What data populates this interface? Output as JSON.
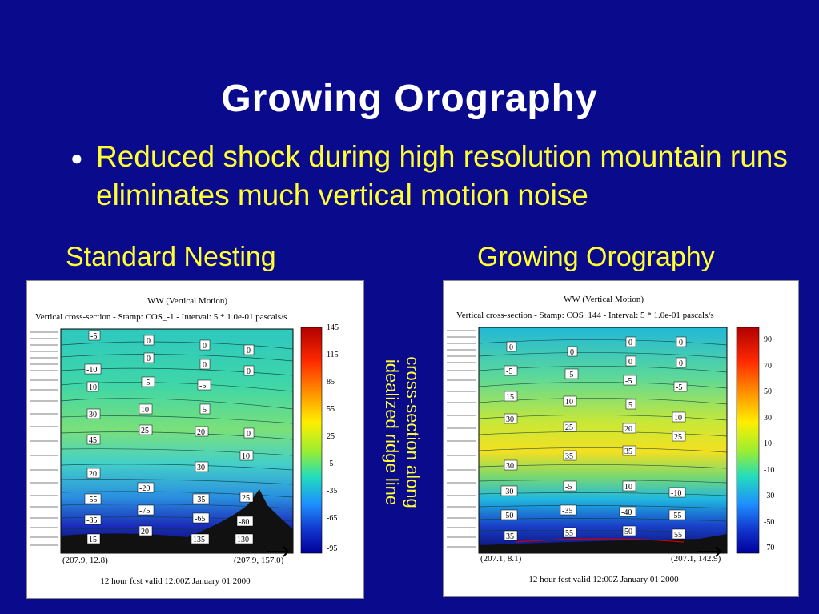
{
  "slide": {
    "title": "Growing Orography",
    "bullet": "Reduced shock during high resolution mountain runs eliminates much vertical motion noise",
    "side_note_line1": "cross-section along",
    "side_note_line2": "idealized ridge line"
  },
  "panels": [
    {
      "label": "Standard Nesting",
      "plot_title": "WW (Vertical Motion)",
      "subtitle": "Vertical cross-section - Stamp: COS_-1 - Interval: 5 * 1.0e-01 pascals/s",
      "footer": "12 hour fcst valid 12:00Z January 01 2000",
      "left_coord": "(207.9,  12.8)",
      "right_coord": "(207.9, 157.0)",
      "colorbar_ticks": [
        "145",
        "115",
        "85",
        "55",
        "25",
        "-5",
        "-35",
        "-65",
        "-95"
      ],
      "contour_labels": [
        "-5",
        "0",
        "0",
        "0",
        "0",
        "0",
        "-10",
        "10",
        "-5",
        "-5",
        "0",
        "30",
        "10",
        "5",
        "25",
        "20",
        "0",
        "45",
        "30",
        "10",
        "20",
        "-20",
        "-55",
        "-35",
        "25",
        "-75",
        "-85",
        "-65",
        "-80",
        "15",
        "20",
        "135",
        "130"
      ]
    },
    {
      "label": "Growing Orography",
      "plot_title": "WW (Vertical Motion)",
      "subtitle": "Vertical cross-section - Stamp: COS_144 - Interval: 5 * 1.0e-01 pascals/s",
      "footer": "12 hour fcst valid 12:00Z January 01 2000",
      "left_coord": "(207.1,   8.1)",
      "right_coord": "(207.1, 142.9)",
      "colorbar_ticks": [
        "90",
        "70",
        "50",
        "30",
        "10",
        "-10",
        "-30",
        "-50",
        "-70"
      ],
      "contour_labels": [
        "0",
        "0",
        "0",
        "0",
        "-5",
        "0",
        "0",
        "-5",
        "-5",
        "-5",
        "15",
        "10",
        "5",
        "30",
        "25",
        "20",
        "10",
        "25",
        "35",
        "35",
        "30",
        "-30",
        "-5",
        "10",
        "-10",
        "-50",
        "-35",
        "-40",
        "-55",
        "35",
        "55",
        "50",
        "55"
      ]
    }
  ]
}
